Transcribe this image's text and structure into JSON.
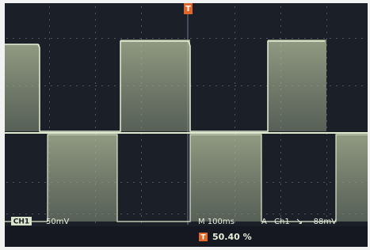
{
  "trigger_marker": "T",
  "status_bar": {
    "channel": "CH1",
    "scale": "50mV",
    "timebase": "M 100ms",
    "trigger_mode": "A",
    "trigger_source": "Ch1",
    "trigger_level": "-88mV"
  },
  "measurement": {
    "icon": "T",
    "value": "50.40 %"
  }
}
